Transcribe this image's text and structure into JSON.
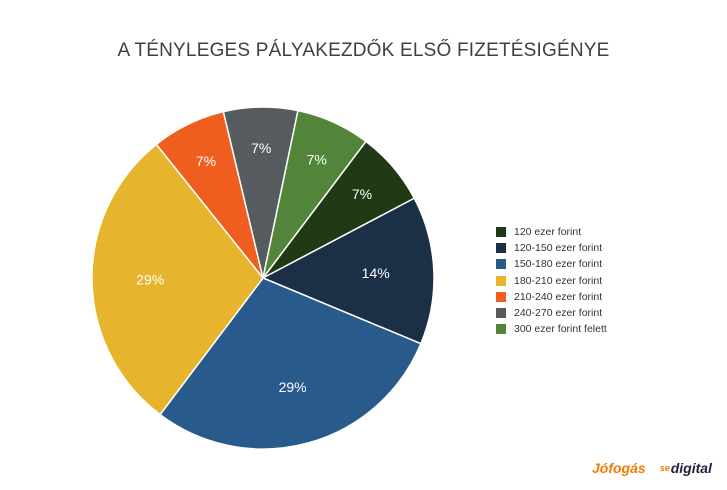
{
  "chart_data": {
    "type": "pie",
    "title": "A TÉNYLEGES PÁLYAKEZDŐK ELSŐ FIZETÉSIGÉNYE",
    "start_angle_deg": 37,
    "direction": "clockwise",
    "legend_position": "right",
    "slices": [
      {
        "label": "120 ezer forint",
        "value": 7,
        "value_label": "7%",
        "color": "#203a16"
      },
      {
        "label": "120-150 ezer forint",
        "value": 14,
        "value_label": "14%",
        "color": "#1b2f47"
      },
      {
        "label": "150-180 ezer forint",
        "value": 29,
        "value_label": "29%",
        "color": "#285a8c"
      },
      {
        "label": "180-210 ezer forint",
        "value": 29,
        "value_label": "29%",
        "color": "#e6b42d"
      },
      {
        "label": "210-240 ezer forint",
        "value": 7,
        "value_label": "7%",
        "color": "#ef5e1f"
      },
      {
        "label": "240-270 ezer forint",
        "value": 7,
        "value_label": "7%",
        "color": "#555b5e"
      },
      {
        "label": "300 ezer forint felett",
        "value": 7,
        "value_label": "7%",
        "color": "#52843a"
      }
    ],
    "legend_order": [
      0,
      1,
      2,
      3,
      4,
      5,
      6
    ]
  },
  "logos": {
    "jofogas": "Jófogás",
    "digital": "digital",
    "digital_prefix_mark": "se"
  }
}
